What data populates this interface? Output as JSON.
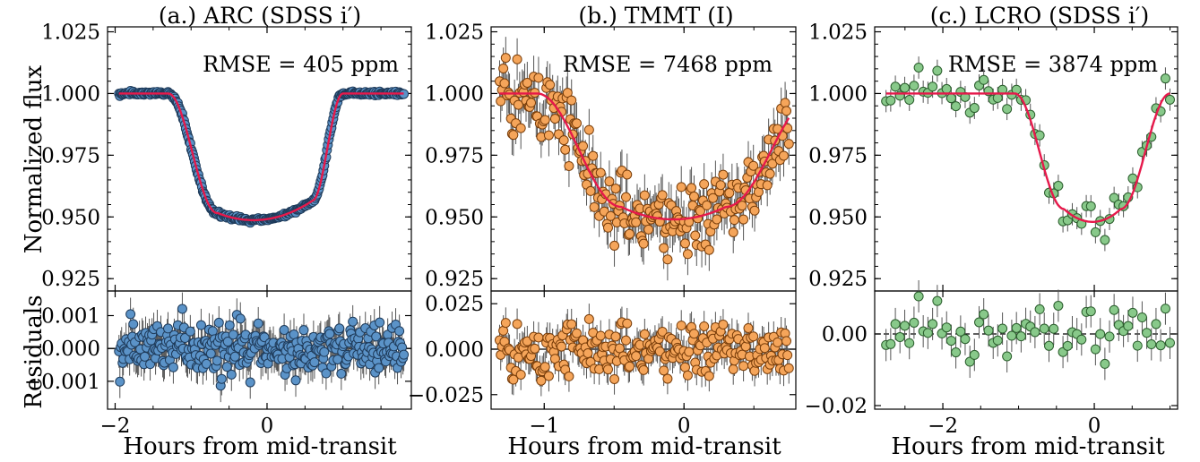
{
  "figure": {
    "shared_xlabel": "Hours from mid-transit",
    "ylabel_top": "Normalized flux",
    "ylabel_bottom": "Residuals"
  },
  "chart_data": [
    {
      "type": "scatter",
      "panel": "a",
      "title": "(a.) ARC (SDSS i′)",
      "rmse_label": "RMSE = 405 ppm",
      "xlabel": "Hours from mid-transit",
      "xlim": [
        -2.1,
        1.9
      ],
      "x_ticks": [
        -2,
        0
      ],
      "x_tick_labels": [
        "−2",
        "0"
      ],
      "top": {
        "ylabel": "Normalized flux",
        "ylim": [
          0.92,
          1.027
        ],
        "y_ticks": [
          0.925,
          0.95,
          0.975,
          1.0,
          1.025
        ],
        "y_tick_labels": [
          "0.925",
          "0.950",
          "0.975",
          "1.000",
          "1.025"
        ],
        "model": {
          "baseline": 1.0,
          "depth": 0.051,
          "t1": -1.3,
          "t2": -0.65,
          "t3": 0.6,
          "t4": 1.0,
          "slope": 0.004
        }
      },
      "bottom": {
        "ylabel": "Residuals",
        "ylim": [
          -0.00185,
          0.00175
        ],
        "y_ticks": [
          -0.001,
          0.0,
          0.001
        ],
        "y_tick_labels": [
          "−0.001",
          "0.000",
          "0.001"
        ],
        "reference_line": 0.0,
        "reference_style": "solid"
      },
      "observations": {
        "x_range": [
          -1.95,
          1.8
        ],
        "n_points": 320,
        "flux_scatter": 0.0004,
        "residual_scatter": 0.0004,
        "error_bar": 0.0005,
        "marker_face": "#5b93c8",
        "marker_edge": "#1f3b5a"
      },
      "model_color": "#e6194b"
    },
    {
      "type": "scatter",
      "panel": "b",
      "title": "(b.) TMMT (I)",
      "rmse_label": "RMSE = 7468 ppm",
      "xlabel": "Hours from mid-transit",
      "xlim": [
        -1.38,
        0.8
      ],
      "x_ticks": [
        -1,
        0
      ],
      "x_tick_labels": [
        "−1",
        "0"
      ],
      "top": {
        "ylabel": "",
        "ylim": [
          0.92,
          1.027
        ],
        "y_ticks": [
          0.925,
          0.95,
          0.975,
          1.0,
          1.025
        ],
        "y_tick_labels": [
          "0.925",
          "0.950",
          "0.975",
          "1.000",
          "1.025"
        ],
        "model": {
          "baseline": 1.0,
          "depth": 0.051,
          "t1": -1.05,
          "t2": -0.45,
          "t3": 0.3,
          "t4": 0.95,
          "slope": 0.0
        }
      },
      "bottom": {
        "ylabel": "",
        "ylim": [
          -0.033,
          0.032
        ],
        "y_ticks": [
          -0.025,
          0.0,
          0.025
        ],
        "y_tick_labels": [
          "−0.025",
          "0.000",
          "0.025"
        ],
        "reference_line": 0.0,
        "reference_style": "solid"
      },
      "observations": {
        "x_range": [
          -1.32,
          0.75
        ],
        "n_points": 230,
        "flux_scatter": 0.0075,
        "residual_scatter": 0.0075,
        "error_bar": 0.0085,
        "marker_face": "#f5a55a",
        "marker_edge": "#7a3e0a"
      },
      "model_color": "#e6194b"
    },
    {
      "type": "scatter",
      "panel": "c",
      "title": "(c.) LCRO (SDSS i′)",
      "rmse_label": "RMSE = 3874 ppm",
      "xlabel": "Hours from mid-transit",
      "xlim": [
        -2.9,
        1.1
      ],
      "x_ticks": [
        -2,
        0
      ],
      "x_tick_labels": [
        "−2",
        "0"
      ],
      "top": {
        "ylabel": "",
        "ylim": [
          0.92,
          1.027
        ],
        "y_ticks": [
          0.925,
          0.95,
          0.975,
          1.0,
          1.025
        ],
        "y_tick_labels": [
          "0.925",
          "0.950",
          "0.975",
          "1.000",
          "1.025"
        ],
        "model": {
          "baseline": 1.0,
          "depth": 0.052,
          "t1": -1.05,
          "t2": -0.4,
          "t3": 0.35,
          "t4": 1.0,
          "slope": 0.0
        }
      },
      "bottom": {
        "ylabel": "",
        "ylim": [
          -0.021,
          0.012
        ],
        "y_ticks": [
          -0.02,
          0.0
        ],
        "y_tick_labels": [
          "−0.02",
          "0.00"
        ],
        "reference_line": 0.0,
        "reference_style": "dashed"
      },
      "observations": {
        "x_range": [
          -2.75,
          1.0
        ],
        "n_points": 62,
        "flux_scatter": 0.0038,
        "residual_scatter": 0.0038,
        "error_bar": 0.0045,
        "marker_face": "#88c98a",
        "marker_edge": "#2a5d2c"
      },
      "model_color": "#e6194b"
    }
  ]
}
